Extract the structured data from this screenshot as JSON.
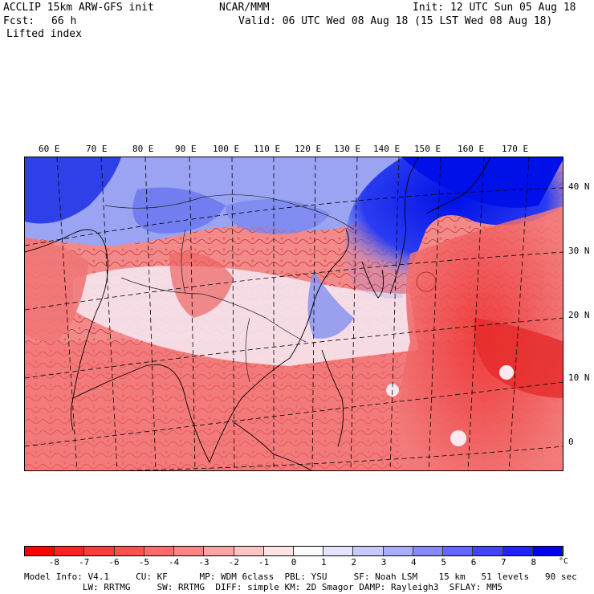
{
  "header": {
    "title_left": "ACCLIP 15km ARW-GFS init",
    "fcst_label": "Fcst:",
    "fcst_value": "66 h",
    "variable": "Lifted index",
    "center": "NCAR/MMM",
    "init": "Init: 12 UTC Sun 05 Aug 18",
    "valid": "Valid: 06 UTC Wed 08 Aug 18 (15 LST Wed 08 Aug 18)"
  },
  "map": {
    "lon_labels": [
      "60 E",
      "70 E",
      "80 E",
      "90 E",
      "100 E",
      "110 E",
      "120 E",
      "130 E",
      "140 E",
      "150 E",
      "160 E",
      "170 E"
    ],
    "lat_labels": [
      "40 N",
      "30 N",
      "20 N",
      "10 N",
      "0"
    ],
    "field": "Lifted index",
    "regions": [
      {
        "name": "unstable-tropics",
        "color": "#ee5555"
      },
      {
        "name": "stable-north",
        "color": "#3344ee"
      }
    ]
  },
  "colorbar": {
    "ticks": [
      "-8",
      "-7",
      "-6",
      "-5",
      "-4",
      "-3",
      "-2",
      "-1",
      "0",
      "1",
      "2",
      "3",
      "4",
      "5",
      "6",
      "7",
      "8"
    ],
    "unit": "°C",
    "colors": [
      "#ff0000",
      "#ff2222",
      "#ff3c3c",
      "#ff5050",
      "#ff6a6a",
      "#ff8585",
      "#ffa3a3",
      "#ffc4c4",
      "#ffe4e4",
      "#fbfbfb",
      "#e4e4ff",
      "#c9c9ff",
      "#aaaaff",
      "#8888ff",
      "#6666ff",
      "#4444ff",
      "#2222ff",
      "#0000ee"
    ]
  },
  "footer": {
    "line1": "Model Info: V4.1     CU: KF      MP: WDM 6class  PBL: YSU     SF: Noah LSM    15 km   51 levels   90 sec",
    "line2": "           LW: RRTMG     SW: RRTMG  DIFF: simple KM: 2D Smagor DAMP: Rayleigh3  SFLAY: MM5"
  }
}
